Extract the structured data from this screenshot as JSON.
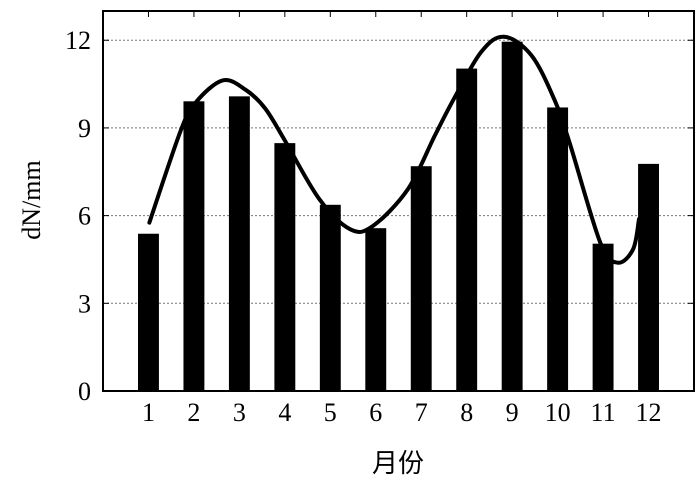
{
  "chart_data": {
    "type": "bar",
    "title": "",
    "xlabel": "月份",
    "ylabel": "dN/mm",
    "categories": [
      "1",
      "2",
      "3",
      "4",
      "5",
      "6",
      "7",
      "8",
      "9",
      "10",
      "11",
      "12"
    ],
    "values": [
      5.38,
      9.91,
      10.08,
      8.48,
      6.37,
      5.57,
      7.69,
      11.03,
      11.95,
      9.7,
      5.04,
      7.77
    ],
    "xlim": [
      0,
      13
    ],
    "ylim": [
      0,
      13
    ],
    "yticks": [
      0,
      3,
      6,
      9,
      12
    ],
    "grid": "horizontal dotted",
    "bar_color": "#000000",
    "fit_curve": {
      "x": [
        1.02,
        1.71,
        2.05,
        2.64,
        3.15,
        3.57,
        4.0,
        4.76,
        5.44,
        5.94,
        6.71,
        7.3,
        7.72,
        8.32,
        8.82,
        9.42,
        9.92,
        10.26,
        10.94,
        11.32,
        11.66,
        11.79
      ],
      "y": [
        5.76,
        8.91,
        9.89,
        10.63,
        10.29,
        9.66,
        8.57,
        6.56,
        5.53,
        5.65,
        6.91,
        8.74,
        10.0,
        11.6,
        12.12,
        11.49,
        10.0,
        8.51,
        5.07,
        4.39,
        4.85,
        5.88
      ]
    }
  }
}
